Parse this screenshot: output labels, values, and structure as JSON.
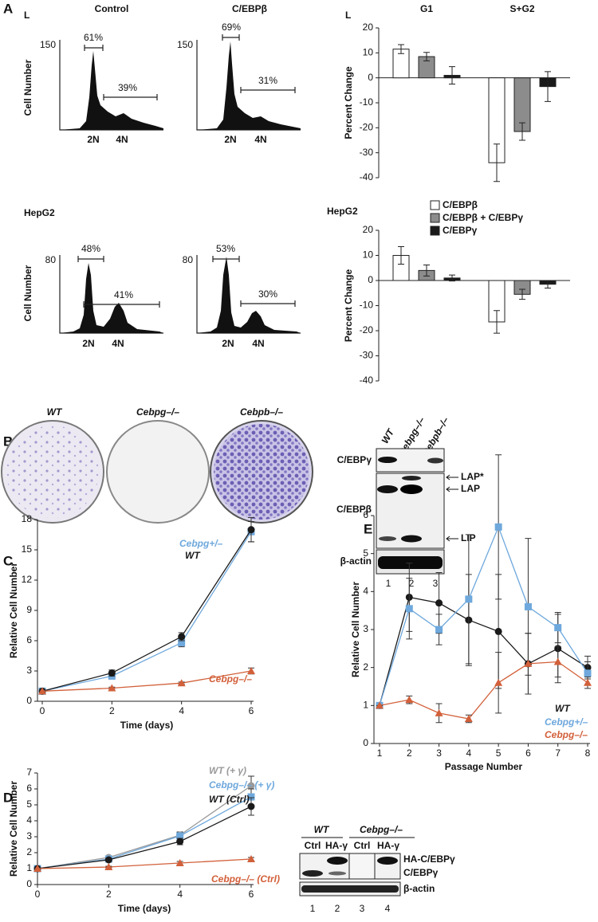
{
  "panels": {
    "labels": [
      "A",
      "B",
      "C",
      "D",
      "E"
    ]
  },
  "flow": {
    "row_labels": [
      "L",
      "HepG2"
    ],
    "y_label": "Cell Number",
    "x_labels": [
      "2N",
      "4N"
    ],
    "histograms": [
      {
        "title": "Control",
        "y_tick": "150",
        "g1": "61%",
        "sg2": "39%"
      },
      {
        "title": "C/EBPβ",
        "y_tick": "150",
        "g1": "69%",
        "sg2": "31%"
      },
      {
        "y_tick": "80",
        "g1": "48%",
        "sg2": "41%"
      },
      {
        "y_tick": "80",
        "g1": "53%",
        "sg2": "30%"
      }
    ]
  },
  "plates": {
    "labels": [
      "WT",
      "Cebpg–/–",
      "Cebpb–/–"
    ]
  },
  "blot_b": {
    "lanes": [
      "WT",
      "Cebpg–/–",
      "Cebpb–/–"
    ],
    "rows": [
      "C/EBPγ",
      "C/EBPβ",
      "β-actin"
    ],
    "bands": [
      "LAP*",
      "LAP",
      "LIP"
    ],
    "lane_numbers": [
      "1",
      "2",
      "3"
    ]
  },
  "blot_d": {
    "groups": [
      "WT",
      "Cebpg–/–"
    ],
    "lanes": [
      "Ctrl",
      "HA-γ",
      "Ctrl",
      "HA-γ"
    ],
    "rows": [
      "HA-C/EBPγ",
      "C/EBPγ",
      "β-actin"
    ],
    "lane_numbers": [
      "1",
      "2",
      "3",
      "4"
    ]
  },
  "chart_data": [
    {
      "type": "bar",
      "label": "L",
      "y_label": "Percent Change",
      "categories": [
        "G1",
        "S+G2"
      ],
      "ylim": [
        -40,
        20
      ],
      "yticks": [
        -40,
        -30,
        -20,
        -10,
        0,
        10,
        20
      ],
      "series": [
        {
          "color": "#ffffff",
          "values": [
            11.5,
            -34
          ],
          "errors": [
            1.8,
            7.5
          ]
        },
        {
          "color": "#8c8c8c",
          "values": [
            8.5,
            -21.5
          ],
          "errors": [
            1.7,
            3.5
          ]
        },
        {
          "color": "#1a1a1a",
          "values": [
            1,
            -3.5
          ],
          "errors": [
            3.5,
            6
          ]
        }
      ]
    },
    {
      "type": "bar",
      "title": "HepG2",
      "y_label": "Percent Change",
      "categories": [
        null,
        null
      ],
      "ylim": [
        -40,
        20
      ],
      "yticks": [
        -40,
        -30,
        -20,
        -10,
        0,
        10,
        20
      ],
      "legend": true,
      "series": [
        {
          "name": "C/EBPβ",
          "color": "#ffffff",
          "values": [
            10,
            -16.5
          ],
          "errors": [
            3.5,
            4.5
          ]
        },
        {
          "name": "C/EBPβ + C/EBPγ",
          "color": "#8c8c8c",
          "values": [
            4,
            -5.5
          ],
          "errors": [
            2.2,
            2
          ]
        },
        {
          "name": "C/EBPγ",
          "color": "#1a1a1a",
          "values": [
            1,
            -1.5
          ],
          "errors": [
            1.2,
            1.5
          ]
        }
      ]
    },
    {
      "type": "line",
      "x_label": "Time (days)",
      "y_label": "Relative Cell Number",
      "x": [
        0,
        2,
        4,
        6
      ],
      "xlim": [
        0,
        6
      ],
      "xticks": [
        0,
        2,
        4,
        6
      ],
      "ylim": [
        0,
        18
      ],
      "yticks": [
        0,
        3,
        6,
        9,
        12,
        15,
        18
      ],
      "series": [
        {
          "name": "Cebpg+/–",
          "color": "#6ea8dc",
          "marker": "square",
          "values": [
            1,
            2.5,
            5.8,
            16.8
          ],
          "errors": [
            0.1,
            0.3,
            0.4,
            1
          ]
        },
        {
          "name": "WT",
          "color": "#1a1a1a",
          "marker": "circle",
          "values": [
            1,
            2.8,
            6.4,
            17
          ],
          "errors": [
            0.1,
            0.3,
            0.4,
            1.2
          ]
        },
        {
          "name": "Cebpg–/–",
          "color": "#d2603a",
          "marker": "triangle",
          "values": [
            1,
            1.3,
            1.8,
            3
          ],
          "errors": [
            0.1,
            0.1,
            0.1,
            0.3
          ]
        }
      ]
    },
    {
      "type": "line",
      "x_label": "Time (days)",
      "y_label": "Relative Cell Number",
      "x": [
        0,
        2,
        4,
        6
      ],
      "xlim": [
        0,
        6
      ],
      "xticks": [
        0,
        2,
        4,
        6
      ],
      "ylim": [
        0,
        7
      ],
      "yticks": [
        0,
        1,
        2,
        3,
        4,
        5,
        6,
        7
      ],
      "series": [
        {
          "name": "WT (+ γ)",
          "color": "#9a9a9a",
          "marker": "circle",
          "values": [
            1,
            1.7,
            3.1,
            6.2
          ],
          "errors": [
            0.05,
            0.1,
            0.2,
            0.6
          ]
        },
        {
          "name": "Cebpg–/– (+ γ)",
          "color": "#6ea8dc",
          "marker": "square",
          "values": [
            1,
            1.6,
            3.05,
            5.5
          ],
          "errors": [
            0.05,
            0.1,
            0.15,
            0.5
          ]
        },
        {
          "name": "WT (Ctrl)",
          "color": "#1a1a1a",
          "marker": "circle",
          "values": [
            1,
            1.55,
            2.7,
            4.9
          ],
          "errors": [
            0.05,
            0.1,
            0.2,
            0.55
          ]
        },
        {
          "name": "Cebpg–/– (Ctrl)",
          "color": "#d2603a",
          "marker": "triangle",
          "values": [
            1,
            1.1,
            1.35,
            1.6
          ],
          "errors": [
            0.05,
            0.05,
            0.1,
            0.1
          ]
        }
      ]
    },
    {
      "type": "line",
      "x_label": "Passage Number",
      "y_label": "Relative Cell Number",
      "x": [
        1,
        2,
        3,
        4,
        5,
        6,
        7,
        8
      ],
      "xlim": [
        1,
        8
      ],
      "xticks": [
        1,
        2,
        3,
        4,
        5,
        6,
        7,
        8
      ],
      "ylim": [
        0,
        6
      ],
      "yticks": [
        0,
        1,
        2,
        3,
        4,
        5,
        6
      ],
      "series": [
        {
          "name": "WT",
          "color": "#1a1a1a",
          "marker": "circle",
          "values": [
            1,
            3.85,
            3.7,
            3.25,
            2.95,
            2.1,
            2.5,
            2
          ],
          "errors": [
            0,
            0.9,
            0.8,
            1.2,
            1.5,
            0.8,
            0.9,
            0.3
          ]
        },
        {
          "name": "Cebpg+/–",
          "color": "#6ea8dc",
          "marker": "square",
          "values": [
            1,
            3.55,
            3,
            3.8,
            5.7,
            3.6,
            3.05,
            1.85
          ],
          "errors": [
            0,
            0.8,
            0.4,
            1.7,
            1.9,
            1.8,
            0.4,
            0.3
          ]
        },
        {
          "name": "Cebpg–/–",
          "color": "#d2603a",
          "marker": "triangle",
          "values": [
            1,
            1.15,
            0.8,
            0.65,
            1.6,
            2.1,
            2.15,
            1.6
          ],
          "errors": [
            0,
            0.1,
            0.25,
            0.1,
            0.8,
            0.8,
            0.4,
            0.15
          ]
        }
      ]
    }
  ]
}
